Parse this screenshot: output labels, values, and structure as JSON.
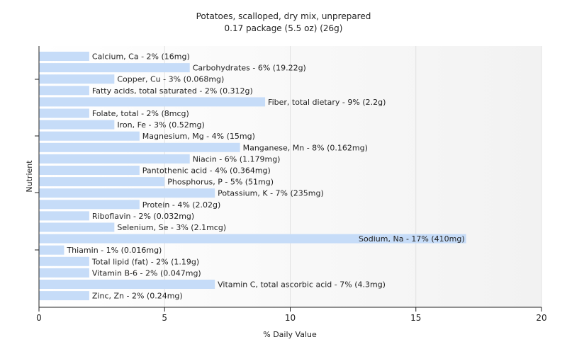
{
  "chart_data": {
    "type": "bar",
    "orientation": "horizontal",
    "title": "Potatoes, scalloped, dry mix, unprepared",
    "subtitle": "0.17 package (5.5 oz) (26g)",
    "xlabel": "% Daily Value",
    "ylabel": "Nutrient",
    "xlim": [
      0,
      20
    ],
    "xticks": [
      "0",
      "5",
      "10",
      "15",
      "20"
    ],
    "grid": true,
    "bar_color": "#c6dcf8",
    "categories": [
      "Calcium, Ca",
      "Carbohydrates",
      "Copper, Cu",
      "Fatty acids, total saturated",
      "Fiber, total dietary",
      "Folate, total",
      "Iron, Fe",
      "Magnesium, Mg",
      "Manganese, Mn",
      "Niacin",
      "Pantothenic acid",
      "Phosphorus, P",
      "Potassium, K",
      "Protein",
      "Riboflavin",
      "Selenium, Se",
      "Sodium, Na",
      "Thiamin",
      "Total lipid (fat)",
      "Vitamin B-6",
      "Vitamin C, total ascorbic acid",
      "Zinc, Zn"
    ],
    "values": [
      2,
      6,
      3,
      2,
      9,
      2,
      3,
      4,
      8,
      6,
      4,
      5,
      7,
      4,
      2,
      3,
      17,
      1,
      2,
      2,
      7,
      2
    ],
    "labels": [
      "Calcium, Ca - 2% (16mg)",
      "Carbohydrates - 6% (19.22g)",
      "Copper, Cu - 3% (0.068mg)",
      "Fatty acids, total saturated - 2% (0.312g)",
      "Fiber, total dietary - 9% (2.2g)",
      "Folate, total - 2% (8mcg)",
      "Iron, Fe - 3% (0.52mg)",
      "Magnesium, Mg - 4% (15mg)",
      "Manganese, Mn - 8% (0.162mg)",
      "Niacin - 6% (1.179mg)",
      "Pantothenic acid - 4% (0.364mg)",
      "Phosphorus, P - 5% (51mg)",
      "Potassium, K - 7% (235mg)",
      "Protein - 4% (2.02g)",
      "Riboflavin - 2% (0.032mg)",
      "Selenium, Se - 3% (2.1mcg)",
      "Sodium, Na - 17% (410mg)",
      "Thiamin - 1% (0.016mg)",
      "Total lipid (fat) - 2% (1.19g)",
      "Vitamin B-6 - 2% (0.047mg)",
      "Vitamin C, total ascorbic acid - 7% (4.3mg)",
      "Zinc, Zn - 2% (0.24mg)"
    ]
  }
}
